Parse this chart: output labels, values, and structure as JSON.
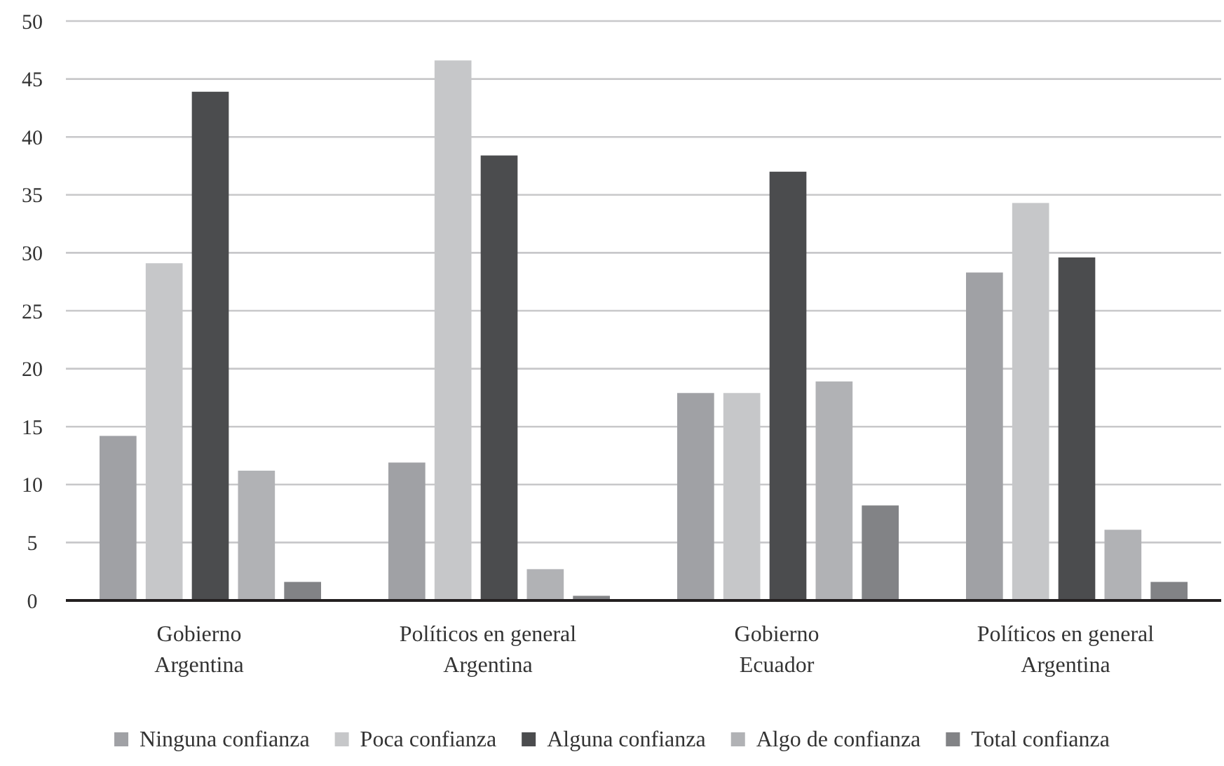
{
  "chart_data": {
    "type": "bar",
    "categories": [
      "Gobierno\nArgentina",
      "Políticos en general\nArgentina",
      "Gobierno\nEcuador",
      "Políticos en general\nArgentina"
    ],
    "series": [
      {
        "name": "Ninguna confianza",
        "color": "#a0a1a5",
        "values": [
          14.2,
          11.9,
          17.9,
          28.3
        ]
      },
      {
        "name": "Poca confianza",
        "color": "#c6c7c9",
        "values": [
          29.1,
          46.6,
          17.9,
          34.3
        ]
      },
      {
        "name": "Alguna confianza",
        "color": "#4b4c4e",
        "values": [
          43.9,
          38.4,
          37.0,
          29.6
        ]
      },
      {
        "name": "Algo de confianza",
        "color": "#b1b2b5",
        "values": [
          11.2,
          2.7,
          18.9,
          6.1
        ]
      },
      {
        "name": "Total confianza",
        "color": "#828386",
        "values": [
          1.6,
          0.4,
          8.2,
          1.6
        ]
      }
    ],
    "ylim": [
      0,
      50
    ],
    "yticks": [
      0,
      5,
      10,
      15,
      20,
      25,
      30,
      35,
      40,
      45,
      50
    ],
    "grid": "y",
    "legend": "bottom"
  }
}
